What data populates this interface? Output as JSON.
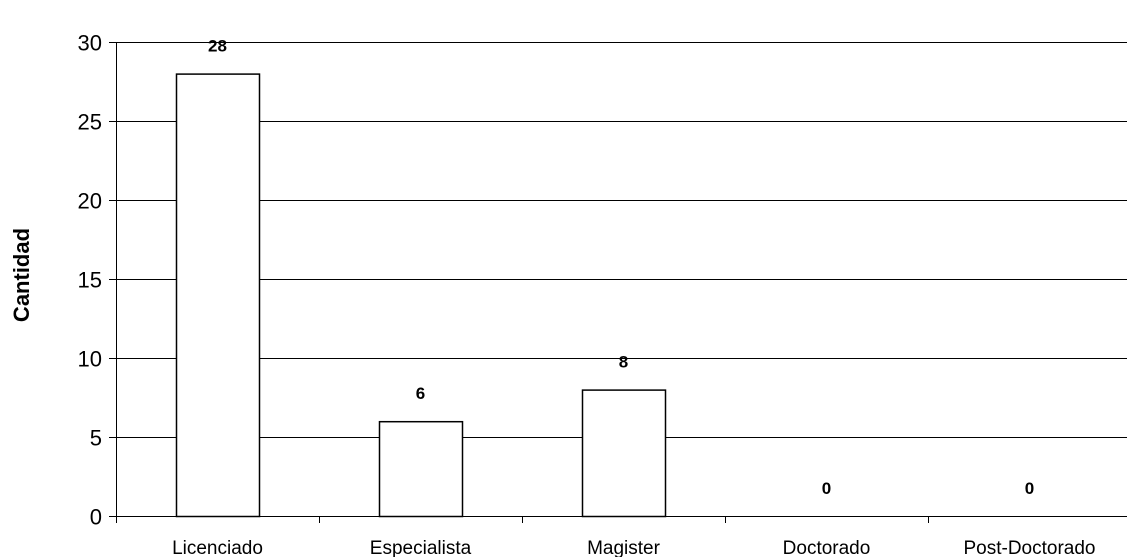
{
  "chart_data": {
    "type": "bar",
    "title": "",
    "xlabel": "",
    "ylabel": "Cantidad",
    "categories": [
      "Licenciado",
      "Especialista",
      "Magister",
      "Doctorado",
      "Post-Doctorado"
    ],
    "values": [
      28,
      6,
      8,
      0,
      0
    ],
    "data_labels": [
      "28",
      "6",
      "8",
      "0",
      "0"
    ],
    "ylim": [
      0,
      30
    ],
    "yticks": [
      0,
      5,
      10,
      15,
      20,
      25,
      30
    ],
    "ytick_labels": [
      "0",
      "5",
      "10",
      "15",
      "20",
      "25",
      "30"
    ],
    "grid": true,
    "legend": "none",
    "colors": {
      "bar_fill": "#ffffff",
      "bar_stroke": "#000000",
      "grid": "#000000",
      "axis": "#000000"
    }
  }
}
